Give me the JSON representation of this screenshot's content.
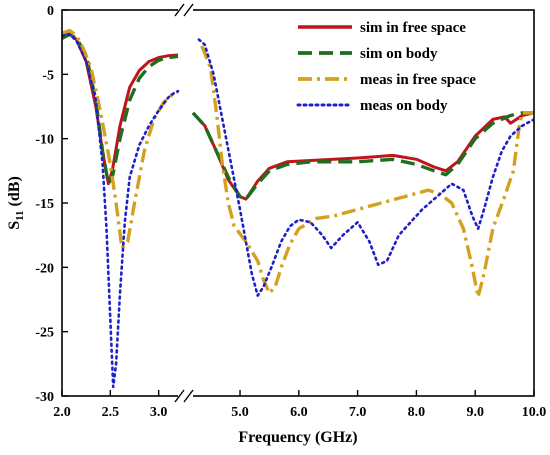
{
  "chart_data": {
    "type": "line",
    "xlabel": "Frequency (GHz)",
    "ylabel_main": "S",
    "ylabel_sub": "11",
    "ylabel_unit": " (dB)",
    "ylim": [
      -30,
      0
    ],
    "yticks": [
      -30,
      -25,
      -20,
      -15,
      -10,
      -5,
      0
    ],
    "xaxis_break": true,
    "xsegments": [
      {
        "range": [
          2.0,
          3.2
        ],
        "ticks": [
          2.0,
          2.5,
          3.0
        ],
        "tick_labels": [
          "2.0",
          "2.5",
          "3.0"
        ]
      },
      {
        "range": [
          4.2,
          10.0
        ],
        "ticks": [
          5.0,
          6.0,
          7.0,
          8.0,
          9.0,
          10.0
        ],
        "tick_labels": [
          "5.0",
          "6.0",
          "7.0",
          "8.0",
          "9.0",
          "10.0"
        ]
      }
    ],
    "legend_position": "top-right",
    "series": [
      {
        "name": "sim in free space",
        "color": "#c0141c",
        "style": "solid",
        "points": [
          [
            [
              2.0,
              -2.0
            ],
            [
              2.08,
              -1.8
            ],
            [
              2.15,
              -2.3
            ],
            [
              2.25,
              -4.0
            ],
            [
              2.35,
              -7.5
            ],
            [
              2.42,
              -11.0
            ],
            [
              2.48,
              -13.5
            ],
            [
              2.52,
              -12.5
            ],
            [
              2.6,
              -9.0
            ],
            [
              2.7,
              -6.0
            ],
            [
              2.8,
              -4.7
            ],
            [
              2.9,
              -4.0
            ],
            [
              3.0,
              -3.7
            ],
            [
              3.1,
              -3.55
            ],
            [
              3.2,
              -3.5
            ]
          ],
          [
            [
              4.2,
              -8.0
            ],
            [
              4.4,
              -9.0
            ],
            [
              4.6,
              -11.0
            ],
            [
              4.8,
              -13.2
            ],
            [
              5.0,
              -14.5
            ],
            [
              5.1,
              -14.7
            ],
            [
              5.3,
              -13.3
            ],
            [
              5.5,
              -12.3
            ],
            [
              5.8,
              -11.8
            ],
            [
              6.2,
              -11.7
            ],
            [
              6.6,
              -11.6
            ],
            [
              7.0,
              -11.5
            ],
            [
              7.6,
              -11.3
            ],
            [
              8.0,
              -11.6
            ],
            [
              8.3,
              -12.2
            ],
            [
              8.5,
              -12.5
            ],
            [
              8.7,
              -11.8
            ],
            [
              9.0,
              -9.8
            ],
            [
              9.3,
              -8.5
            ],
            [
              9.5,
              -8.3
            ],
            [
              9.6,
              -8.8
            ],
            [
              9.8,
              -8.2
            ],
            [
              10.0,
              -8.0
            ]
          ]
        ]
      },
      {
        "name": "sim on body",
        "color": "#1e6e1e",
        "style": "dashed",
        "points": [
          [
            [
              2.0,
              -2.2
            ],
            [
              2.08,
              -1.9
            ],
            [
              2.15,
              -2.2
            ],
            [
              2.25,
              -3.5
            ],
            [
              2.35,
              -7.0
            ],
            [
              2.42,
              -11.0
            ],
            [
              2.48,
              -13.5
            ],
            [
              2.52,
              -13.0
            ],
            [
              2.6,
              -10.0
            ],
            [
              2.7,
              -7.0
            ],
            [
              2.8,
              -5.3
            ],
            [
              2.9,
              -4.4
            ],
            [
              3.0,
              -3.9
            ],
            [
              3.1,
              -3.7
            ],
            [
              3.2,
              -3.6
            ]
          ],
          [
            [
              4.2,
              -8.0
            ],
            [
              4.4,
              -9.0
            ],
            [
              4.6,
              -11.0
            ],
            [
              4.8,
              -13.0
            ],
            [
              5.0,
              -14.5
            ],
            [
              5.1,
              -14.7
            ],
            [
              5.3,
              -13.5
            ],
            [
              5.5,
              -12.5
            ],
            [
              5.8,
              -12.0
            ],
            [
              6.2,
              -11.8
            ],
            [
              6.6,
              -11.8
            ],
            [
              7.0,
              -11.8
            ],
            [
              7.6,
              -11.6
            ],
            [
              8.0,
              -12.0
            ],
            [
              8.3,
              -12.5
            ],
            [
              8.5,
              -12.8
            ],
            [
              8.7,
              -12.0
            ],
            [
              9.0,
              -10.0
            ],
            [
              9.3,
              -8.8
            ],
            [
              9.6,
              -8.2
            ],
            [
              9.8,
              -8.0
            ],
            [
              10.0,
              -8.0
            ]
          ]
        ]
      },
      {
        "name": "meas in free space",
        "color": "#d4a020",
        "style": "dashdot",
        "points": [
          [
            [
              2.0,
              -1.8
            ],
            [
              2.08,
              -1.6
            ],
            [
              2.15,
              -2.0
            ],
            [
              2.22,
              -3.0
            ],
            [
              2.3,
              -4.5
            ],
            [
              2.4,
              -8.0
            ],
            [
              2.5,
              -12.0
            ],
            [
              2.56,
              -15.0
            ],
            [
              2.62,
              -18.5
            ],
            [
              2.68,
              -18.0
            ],
            [
              2.75,
              -15.0
            ],
            [
              2.85,
              -11.0
            ],
            [
              2.95,
              -8.5
            ],
            [
              3.05,
              -7.2
            ],
            [
              3.15,
              -6.5
            ],
            [
              3.2,
              -6.4
            ]
          ],
          [
            [
              4.35,
              -2.8
            ],
            [
              4.5,
              -4.5
            ],
            [
              4.6,
              -8.0
            ],
            [
              4.7,
              -12.0
            ],
            [
              4.8,
              -15.0
            ],
            [
              4.9,
              -16.8
            ],
            [
              5.1,
              -18.0
            ],
            [
              5.3,
              -19.5
            ],
            [
              5.4,
              -21.0
            ],
            [
              5.5,
              -22.0
            ],
            [
              5.6,
              -21.5
            ],
            [
              5.7,
              -20.0
            ],
            [
              5.85,
              -18.2
            ],
            [
              6.0,
              -17.0
            ],
            [
              6.3,
              -16.2
            ],
            [
              6.6,
              -16.0
            ],
            [
              7.0,
              -15.5
            ],
            [
              7.4,
              -15.0
            ],
            [
              7.8,
              -14.5
            ],
            [
              8.2,
              -14.0
            ],
            [
              8.4,
              -14.3
            ],
            [
              8.6,
              -15.0
            ],
            [
              8.8,
              -17.0
            ],
            [
              8.95,
              -20.0
            ],
            [
              9.05,
              -22.3
            ],
            [
              9.15,
              -20.5
            ],
            [
              9.3,
              -17.0
            ],
            [
              9.5,
              -14.5
            ],
            [
              9.65,
              -12.5
            ],
            [
              9.75,
              -9.0
            ],
            [
              9.8,
              -8.0
            ],
            [
              10.0,
              -8.0
            ]
          ]
        ]
      },
      {
        "name": "meas on body",
        "color": "#2020c8",
        "style": "dotted",
        "points": [
          [
            [
              2.0,
              -2.0
            ],
            [
              2.08,
              -1.9
            ],
            [
              2.15,
              -2.4
            ],
            [
              2.25,
              -4.0
            ],
            [
              2.35,
              -7.0
            ],
            [
              2.42,
              -12.0
            ],
            [
              2.46,
              -17.0
            ],
            [
              2.5,
              -24.0
            ],
            [
              2.53,
              -29.3
            ],
            [
              2.56,
              -27.5
            ],
            [
              2.6,
              -22.0
            ],
            [
              2.65,
              -16.5
            ],
            [
              2.7,
              -13.0
            ],
            [
              2.8,
              -10.5
            ],
            [
              2.9,
              -9.0
            ],
            [
              3.0,
              -7.8
            ],
            [
              3.1,
              -6.8
            ],
            [
              3.15,
              -6.5
            ],
            [
              3.2,
              -6.3
            ]
          ],
          [
            [
              4.3,
              -2.3
            ],
            [
              4.4,
              -2.7
            ],
            [
              4.55,
              -5.0
            ],
            [
              4.7,
              -8.5
            ],
            [
              4.85,
              -12.0
            ],
            [
              5.0,
              -15.5
            ],
            [
              5.1,
              -18.0
            ],
            [
              5.2,
              -20.5
            ],
            [
              5.3,
              -22.2
            ],
            [
              5.4,
              -21.5
            ],
            [
              5.55,
              -19.8
            ],
            [
              5.7,
              -18.0
            ],
            [
              5.85,
              -16.8
            ],
            [
              6.0,
              -16.3
            ],
            [
              6.2,
              -16.5
            ],
            [
              6.4,
              -17.5
            ],
            [
              6.55,
              -18.5
            ],
            [
              6.75,
              -17.5
            ],
            [
              7.0,
              -16.5
            ],
            [
              7.2,
              -18.0
            ],
            [
              7.35,
              -19.8
            ],
            [
              7.5,
              -19.5
            ],
            [
              7.7,
              -17.5
            ],
            [
              7.9,
              -16.5
            ],
            [
              8.1,
              -15.5
            ],
            [
              8.35,
              -14.5
            ],
            [
              8.6,
              -13.5
            ],
            [
              8.8,
              -14.0
            ],
            [
              8.95,
              -16.0
            ],
            [
              9.05,
              -17.0
            ],
            [
              9.15,
              -15.5
            ],
            [
              9.3,
              -13.0
            ],
            [
              9.45,
              -11.0
            ],
            [
              9.6,
              -9.8
            ],
            [
              9.8,
              -9.0
            ],
            [
              10.0,
              -8.5
            ]
          ]
        ]
      }
    ]
  }
}
